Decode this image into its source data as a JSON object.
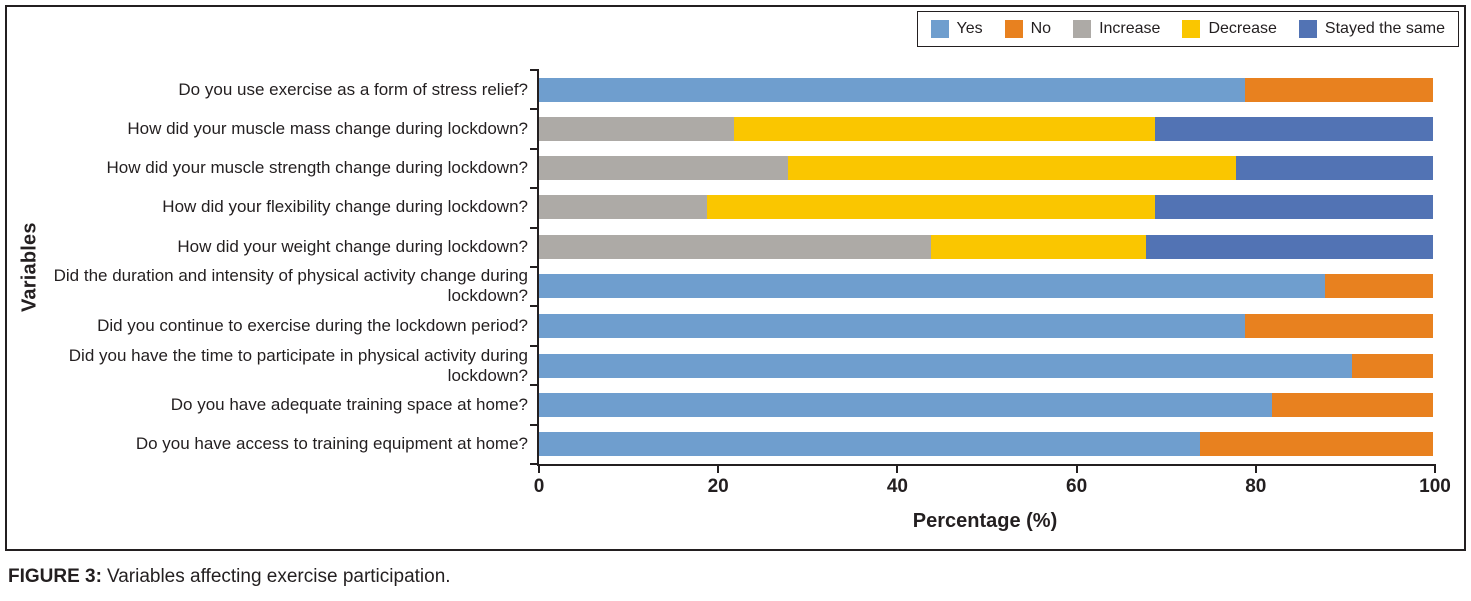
{
  "figure": {
    "caption_label": "FIGURE 3:",
    "caption_text": "Variables affecting exercise participation."
  },
  "chart_data": {
    "type": "bar",
    "orientation": "horizontal",
    "stacked": true,
    "title": "",
    "xlabel": "Percentage (%)",
    "ylabel": "Variables",
    "xlim": [
      0,
      100
    ],
    "xticks": [
      0,
      20,
      40,
      60,
      80,
      100
    ],
    "grid": false,
    "legend_position": "top-right",
    "legend": [
      {
        "label": "Yes",
        "color": "#6F9ECE"
      },
      {
        "label": "No",
        "color": "#E8811F"
      },
      {
        "label": "Increase",
        "color": "#ADAAA6"
      },
      {
        "label": "Decrease",
        "color": "#FAC600"
      },
      {
        "label": "Stayed the same",
        "color": "#5273B4"
      }
    ],
    "rows": [
      {
        "label": "Do you use exercise as a form of stress relief?",
        "segments": [
          {
            "series": "Yes",
            "value": 79
          },
          {
            "series": "No",
            "value": 21
          }
        ]
      },
      {
        "label": "How did your muscle mass change during lockdown?",
        "segments": [
          {
            "series": "Increase",
            "value": 22
          },
          {
            "series": "Decrease",
            "value": 47
          },
          {
            "series": "Stayed the same",
            "value": 31
          }
        ]
      },
      {
        "label": "How did your muscle strength change during lockdown?",
        "segments": [
          {
            "series": "Increase",
            "value": 28
          },
          {
            "series": "Decrease",
            "value": 50
          },
          {
            "series": "Stayed the same",
            "value": 22
          }
        ]
      },
      {
        "label": "How did your flexibility change during lockdown?",
        "segments": [
          {
            "series": "Increase",
            "value": 19
          },
          {
            "series": "Decrease",
            "value": 50
          },
          {
            "series": "Stayed the same",
            "value": 31
          }
        ]
      },
      {
        "label": "How did your weight change during lockdown?",
        "segments": [
          {
            "series": "Increase",
            "value": 44
          },
          {
            "series": "Decrease",
            "value": 24
          },
          {
            "series": "Stayed the same",
            "value": 32
          }
        ]
      },
      {
        "label": "Did the duration and intensity of physical activity change during lockdown?",
        "segments": [
          {
            "series": "Yes",
            "value": 88
          },
          {
            "series": "No",
            "value": 12
          }
        ]
      },
      {
        "label": "Did you continue to exercise during the lockdown period?",
        "segments": [
          {
            "series": "Yes",
            "value": 79
          },
          {
            "series": "No",
            "value": 21
          }
        ]
      },
      {
        "label": "Did you have the time to participate in physical activity during lockdown?",
        "segments": [
          {
            "series": "Yes",
            "value": 91
          },
          {
            "series": "No",
            "value": 9
          }
        ]
      },
      {
        "label": "Do you have adequate training space at home?",
        "segments": [
          {
            "series": "Yes",
            "value": 82
          },
          {
            "series": "No",
            "value": 18
          }
        ]
      },
      {
        "label": "Do you have access to training equipment at home?",
        "segments": [
          {
            "series": "Yes",
            "value": 74
          },
          {
            "series": "No",
            "value": 26
          }
        ]
      }
    ]
  }
}
